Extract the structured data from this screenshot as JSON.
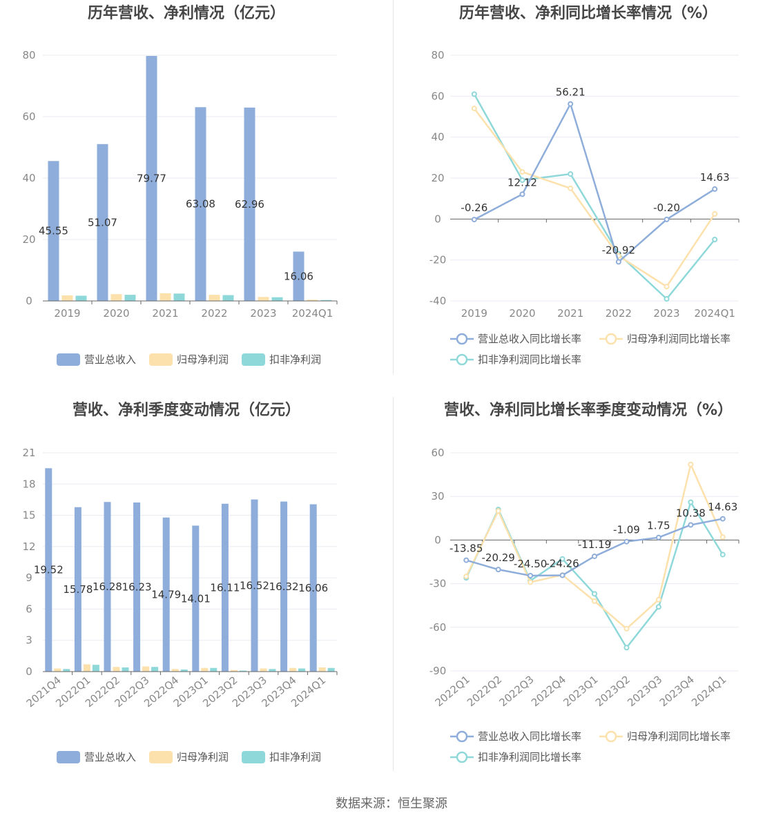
{
  "source_text": "数据来源：恒生聚源",
  "colors": {
    "revenue": "#8eadda",
    "net_profit": "#fde1ac",
    "deducted_profit": "#8fd8d9",
    "grid": "#e8ebf3",
    "axis": "#666666",
    "text": "#464646"
  },
  "chart_data": [
    {
      "id": "annual-bars",
      "type": "bar",
      "title": "历年营收、净利情况（亿元）",
      "categories": [
        "2019",
        "2020",
        "2021",
        "2022",
        "2023",
        "2024Q1"
      ],
      "ylim": [
        0,
        80
      ],
      "yticks": [
        0,
        20,
        40,
        60,
        80
      ],
      "legend_placement": "bottom",
      "grid": true,
      "series": [
        {
          "name": "营业总收入",
          "values": [
            45.55,
            51.07,
            79.77,
            63.08,
            62.96,
            16.06
          ],
          "show_labels": true
        },
        {
          "name": "归母净利润",
          "values": [
            1.8,
            2.2,
            2.5,
            2.0,
            1.3,
            0.4
          ],
          "show_labels": false
        },
        {
          "name": "扣非净利润",
          "values": [
            1.7,
            2.0,
            2.4,
            1.9,
            1.2,
            0.3
          ],
          "show_labels": false
        }
      ],
      "labels": [
        "45.55",
        "51.07",
        "79.77",
        "63.08",
        "62.96",
        "16.06"
      ]
    },
    {
      "id": "annual-growth",
      "type": "line",
      "title": "历年营收、净利同比增长率情况（%）",
      "categories": [
        "2019",
        "2020",
        "2021",
        "2022",
        "2023",
        "2024Q1"
      ],
      "ylim": [
        -40,
        80
      ],
      "yticks": [
        -40,
        -20,
        0,
        20,
        40,
        60,
        80
      ],
      "legend_placement": "bottom",
      "grid": true,
      "series": [
        {
          "name": "营业总收入同比增长率",
          "values": [
            -0.26,
            12.12,
            56.21,
            -20.92,
            -0.2,
            14.63
          ],
          "show_labels": true
        },
        {
          "name": "归母净利润同比增长率",
          "values": [
            54,
            23,
            15,
            -18,
            -33,
            2.5
          ],
          "show_labels": false
        },
        {
          "name": "扣非净利润同比增长率",
          "values": [
            61,
            19,
            22,
            -17,
            -39,
            -10
          ],
          "show_labels": false
        }
      ],
      "labels": [
        "-0.26",
        "12.12",
        "56.21",
        "-20.92",
        "-0.20",
        "14.63"
      ]
    },
    {
      "id": "quarterly-bars",
      "type": "bar",
      "title": "营收、净利季度变动情况（亿元）",
      "categories": [
        "2021Q4",
        "2022Q1",
        "2022Q2",
        "2022Q3",
        "2022Q4",
        "2023Q1",
        "2023Q2",
        "2023Q3",
        "2023Q4",
        "2024Q1"
      ],
      "ylim": [
        0,
        21
      ],
      "yticks": [
        0,
        3,
        6,
        9,
        12,
        15,
        18,
        21
      ],
      "legend_placement": "bottom",
      "grid": true,
      "series": [
        {
          "name": "营业总收入",
          "values": [
            19.52,
            15.78,
            16.28,
            16.23,
            14.79,
            14.01,
            16.11,
            16.52,
            16.32,
            16.06
          ],
          "show_labels": true
        },
        {
          "name": "归母净利润",
          "values": [
            0.3,
            0.7,
            0.45,
            0.5,
            0.25,
            0.35,
            0.15,
            0.3,
            0.35,
            0.4
          ],
          "show_labels": false
        },
        {
          "name": "扣非净利润",
          "values": [
            0.25,
            0.65,
            0.4,
            0.45,
            0.2,
            0.35,
            0.1,
            0.25,
            0.3,
            0.35
          ],
          "show_labels": false
        }
      ],
      "labels": [
        "19.52",
        "15.78",
        "16.28",
        "16.23",
        "14.79",
        "14.01",
        "16.11",
        "16.52",
        "16.32",
        "16.06"
      ]
    },
    {
      "id": "quarterly-growth",
      "type": "line",
      "title": "营收、净利同比增长率季度变动情况（%）",
      "categories": [
        "2022Q1",
        "2022Q2",
        "2022Q3",
        "2022Q4",
        "2023Q1",
        "2023Q2",
        "2023Q3",
        "2023Q4",
        "2024Q1"
      ],
      "ylim": [
        -90,
        60
      ],
      "yticks": [
        -90,
        -60,
        -30,
        0,
        30,
        60
      ],
      "legend_placement": "bottom",
      "grid": true,
      "series": [
        {
          "name": "营业总收入同比增长率",
          "values": [
            -13.85,
            -20.29,
            -24.5,
            -24.26,
            -11.19,
            -1.09,
            1.75,
            10.38,
            14.63
          ],
          "show_labels": true
        },
        {
          "name": "归母净利润同比增长率",
          "values": [
            -25,
            20,
            -29,
            -24,
            -42,
            -61,
            -41,
            52,
            2
          ],
          "show_labels": false
        },
        {
          "name": "扣非净利润同比增长率",
          "values": [
            -26,
            21,
            -28,
            -13,
            -37,
            -74,
            -46,
            26,
            -10
          ],
          "show_labels": false
        }
      ],
      "labels": [
        "-13.85",
        "-20.29",
        "-24.50",
        "-24.26",
        "-11.19",
        "-1.09",
        "1.75",
        "10.38",
        "14.63"
      ]
    }
  ]
}
